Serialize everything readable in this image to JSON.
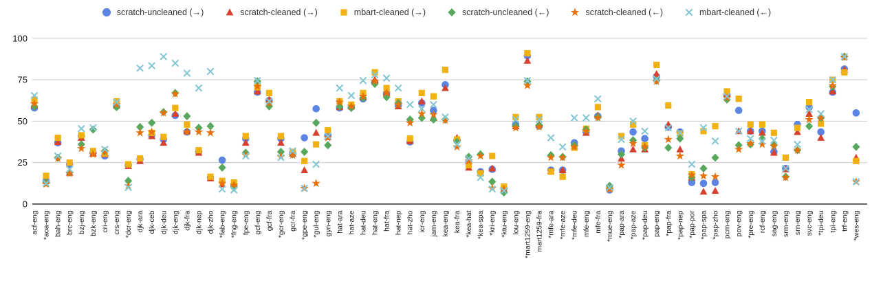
{
  "chart_data": {
    "type": "scatter",
    "title": "",
    "xlabel": "",
    "ylabel": "",
    "ylim": [
      0,
      100
    ],
    "yticks": [
      0,
      25,
      50,
      75,
      100
    ],
    "grid": "horizontal",
    "legend_position": "top-center",
    "colors": {
      "grid": "#cccccc",
      "zero_axis": "#333333",
      "background": "#ffffff"
    },
    "categories": [
      "acf-eng",
      "*aoa-eng",
      "bah-eng",
      "brc-eng",
      "bzj-eng",
      "bzk-eng",
      "cri-eng",
      "crs-eng",
      "*dcr-eng",
      "djk-ara",
      "djk-ceb",
      "djk-deu",
      "djk-eng",
      "djk-fra",
      "djk-nep",
      "djk-zho",
      "*fab-eng",
      "*fng-eng",
      "fpe-eng",
      "gcf-eng",
      "gcf-fra",
      "*gcr-eng",
      "gcr-fra",
      "*gpe-eng",
      "*gul-eng",
      "gyn-eng",
      "hat-ara",
      "hat-aze",
      "hat-deu",
      "hat-eng",
      "hat-fra",
      "hat-nep",
      "hat-zho",
      "icr-eng",
      "jam-eng",
      "kea-eng",
      "kea-fra",
      "*kea-hat",
      "*kea-spa",
      "*kri-eng",
      "*ktu-eng",
      "lou-eng",
      "*mart1259-eng",
      "mart1259-fra",
      "*mfe-ara",
      "*mfe-aze",
      "*mfe-deu",
      "mfe-eng",
      "mfe-fra",
      "*mue-eng",
      "*pap-ara",
      "*pap-aze",
      "*pap-deu",
      "pap-eng",
      "*pap-fra",
      "*pap-nep",
      "*pap-por",
      "*pap-spa",
      "*pap-zho",
      "pcm-eng",
      "pov-eng",
      "*pre-eng",
      "rcf-eng",
      "sag-eng",
      "srm-eng",
      "srn-eng",
      "svc-eng",
      "*tpi-deu",
      "tpi-eng",
      "trf-eng",
      "*wes-eng"
    ],
    "series": [
      {
        "name": "scratch-uncleaned (→)",
        "marker": "circle",
        "color": "#5c84e4",
        "values": [
          58,
          14,
          37,
          24,
          41,
          31,
          29,
          59,
          23.5,
          27,
          41.5,
          39,
          53.5,
          43.5,
          31.5,
          16,
          26.5,
          11,
          39.5,
          67.5,
          62.5,
          39.5,
          31,
          40,
          57.5,
          41.5,
          58,
          58.5,
          63.5,
          73.5,
          66.5,
          59.5,
          37.5,
          61,
          56.5,
          72,
          38.5,
          25,
          19.5,
          21,
          9.5,
          48,
          89.5,
          47,
          20.5,
          20.5,
          37,
          43.5,
          53,
          8.5,
          32,
          43.5,
          39.5,
          77,
          46.5,
          43.5,
          13,
          12.5,
          13,
          66,
          56.5,
          44,
          44,
          31.5,
          21.5,
          48,
          58.5,
          43.5,
          67.5,
          81.5,
          55
        ]
      },
      {
        "name": "scratch-cleaned (→)",
        "marker": "triangle",
        "color": "#d6422f",
        "values": [
          59.5,
          14,
          37.5,
          19,
          40,
          30.5,
          30,
          59.5,
          23,
          26,
          41,
          37,
          54.5,
          44,
          31,
          15.5,
          12,
          12.5,
          37,
          68,
          63,
          37,
          30.5,
          20.5,
          43,
          40.5,
          58.5,
          59,
          64.5,
          75,
          67,
          59,
          38,
          62,
          52,
          70,
          40,
          22,
          19,
          21.5,
          9,
          47,
          86.5,
          48,
          20,
          20.5,
          35,
          43,
          53.5,
          10.5,
          27.5,
          33,
          33,
          78.5,
          48,
          33,
          16,
          7.5,
          8,
          66.5,
          44,
          44,
          43,
          31,
          21,
          43.5,
          54.5,
          40,
          68,
          81,
          28
        ]
      },
      {
        "name": "mbart-cleaned (→)",
        "marker": "square",
        "color": "#f1b211",
        "values": [
          63,
          17,
          40,
          25,
          41.5,
          32,
          30.5,
          62,
          24,
          27.5,
          43,
          40.5,
          58,
          48,
          32.5,
          16.5,
          14,
          13,
          41,
          70.5,
          67,
          41,
          31.5,
          26,
          36,
          44.5,
          62,
          60,
          67,
          79.5,
          70,
          62,
          39.5,
          67,
          65,
          81,
          39,
          23.5,
          18.5,
          29,
          10.5,
          52.5,
          91,
          52.5,
          19.5,
          16.5,
          34,
          45.5,
          58.5,
          9.5,
          41,
          48,
          35.5,
          84,
          59.5,
          42.5,
          18,
          44,
          47,
          68,
          63.5,
          48,
          48,
          43,
          28,
          46,
          61.5,
          48.5,
          75,
          79.5,
          26
        ]
      },
      {
        "name": "scratch-uncleaned (←)",
        "marker": "diamond",
        "color": "#57a75c",
        "values": [
          59,
          13,
          28,
          19,
          36,
          45,
          32,
          58.5,
          14,
          46.5,
          49,
          55.5,
          67,
          53,
          46,
          47,
          22,
          10,
          31,
          74,
          59,
          31.5,
          30,
          31.5,
          49,
          35.5,
          59,
          58,
          64,
          72.5,
          64.5,
          61,
          51,
          52,
          51,
          51,
          37.5,
          28.5,
          30,
          13.5,
          7,
          47,
          74,
          47.5,
          29.5,
          28.5,
          35.5,
          45,
          52.5,
          11,
          30,
          38.5,
          34,
          74.5,
          34,
          39.5,
          16,
          21.5,
          28,
          63,
          35.5,
          36,
          39.5,
          35.5,
          16.5,
          32.5,
          47,
          52,
          71,
          89,
          34.5
        ]
      },
      {
        "name": "scratch-cleaned (←)",
        "marker": "star",
        "color": "#e8710a",
        "values": [
          60.5,
          12,
          27.5,
          18.5,
          33.5,
          30,
          31.5,
          60,
          11,
          43,
          43.5,
          55,
          66.5,
          43.5,
          43.5,
          43,
          12.5,
          11.5,
          29.5,
          71,
          61,
          28.5,
          29.5,
          9.5,
          12.5,
          40,
          61.5,
          59,
          65,
          74,
          67,
          60,
          49,
          54.5,
          54,
          50.5,
          34.5,
          26,
          29,
          9.5,
          9,
          46,
          71.5,
          46.5,
          28,
          28,
          34.5,
          44,
          52,
          9,
          23.5,
          36.5,
          34.5,
          74,
          39,
          29,
          17.5,
          17,
          16.5,
          64,
          33,
          36.5,
          36,
          35,
          16,
          32.5,
          51,
          52,
          71.5,
          88.5,
          13.5
        ]
      },
      {
        "name": "mbart-cleaned (←)",
        "marker": "x",
        "color": "#85c7d3",
        "values": [
          65.5,
          12.5,
          29,
          21,
          45.5,
          46,
          33,
          61.5,
          10,
          82,
          83.5,
          89,
          85,
          79,
          70,
          80,
          9,
          8.5,
          29,
          74.5,
          62,
          28,
          32,
          9.5,
          24,
          41,
          70,
          65.5,
          74.5,
          78,
          76,
          70,
          60,
          57.5,
          60,
          52.5,
          36,
          27.5,
          16,
          9,
          8,
          51,
          74.5,
          51,
          40,
          34.5,
          52,
          52,
          63.5,
          10,
          39,
          50,
          44,
          75.5,
          46,
          43,
          24,
          46,
          38,
          65,
          44,
          39.5,
          38,
          38.5,
          21.5,
          36,
          57,
          54.5,
          75,
          89,
          13.5
        ]
      }
    ]
  }
}
